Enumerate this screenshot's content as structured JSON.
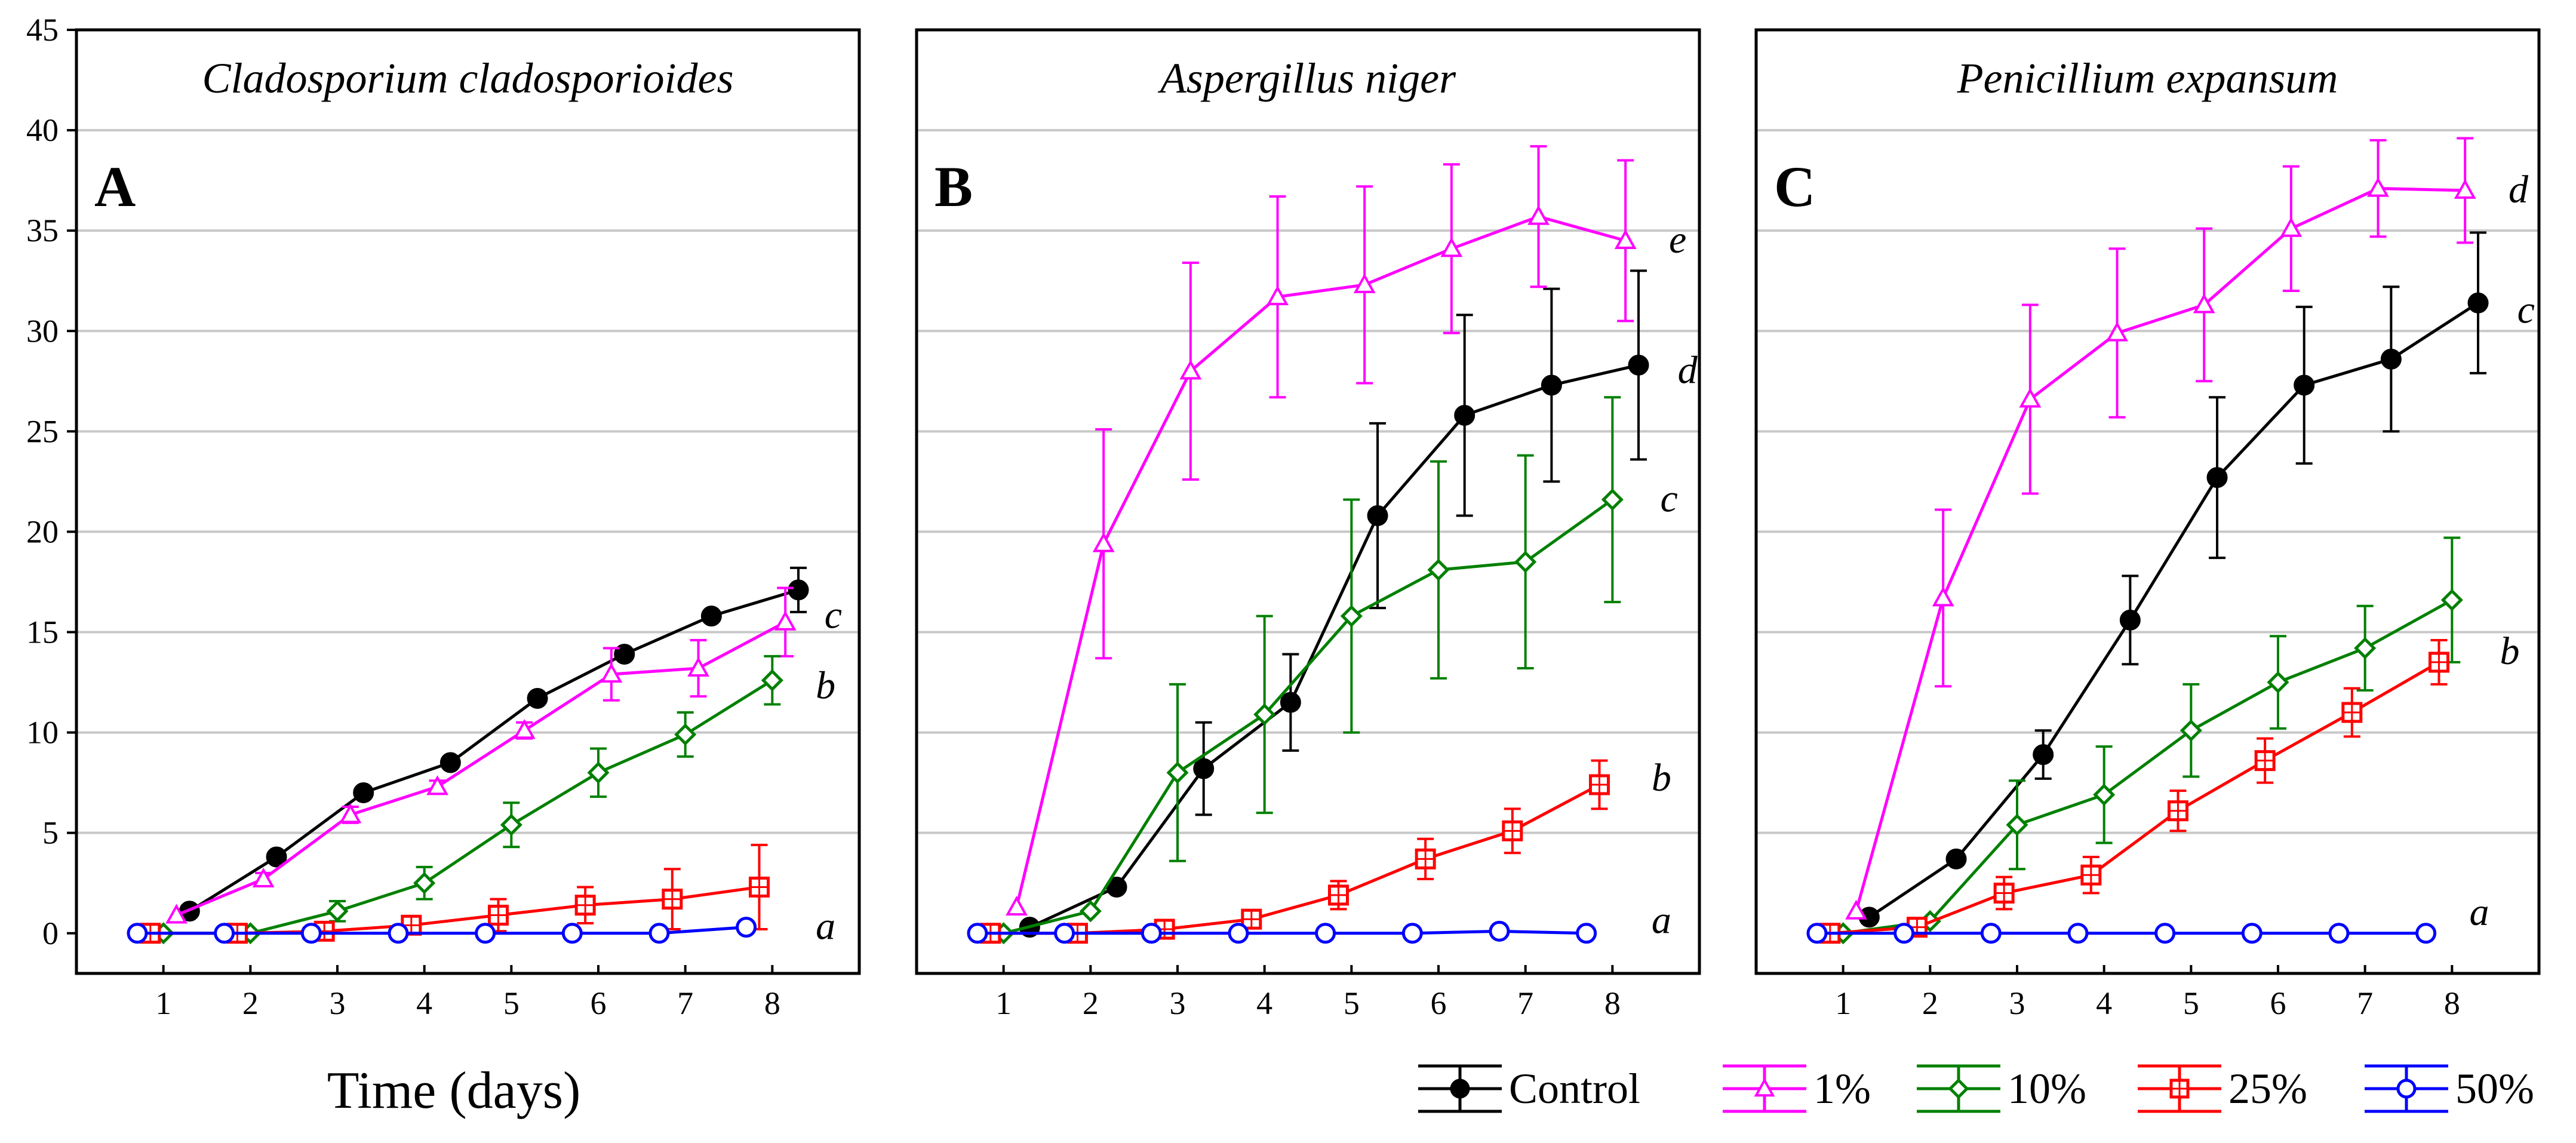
{
  "figure": {
    "xlabel": "Time (days)",
    "legend": [
      {
        "name": "Control",
        "color": "#000000",
        "marker": "filled-circle"
      },
      {
        "name": "1%",
        "color": "#ff00ff",
        "marker": "triangle"
      },
      {
        "name": "10%",
        "color": "#008000",
        "marker": "diamond"
      },
      {
        "name": "25%",
        "color": "#ff0000",
        "marker": "square"
      },
      {
        "name": "50%",
        "color": "#0000ff",
        "marker": "circle"
      }
    ],
    "legend_placement": "bottom-right"
  },
  "chart_data": [
    {
      "type": "line",
      "panel_letter": "A",
      "title": "Cladosporium cladosporioides",
      "x_ticks": [
        "1",
        "2",
        "3",
        "4",
        "5",
        "6",
        "7",
        "8"
      ],
      "y_ticks": [
        "0",
        "5",
        "10",
        "15",
        "20",
        "25",
        "30",
        "35",
        "40",
        "45"
      ],
      "xlim": [
        0,
        9
      ],
      "ylim": [
        -2,
        45
      ],
      "grid": "horizontal",
      "xlabel": "Time (days)",
      "series": [
        {
          "name": "Control",
          "x": [
            1.3,
            2.3,
            3.3,
            4.3,
            5.3,
            6.3,
            7.3,
            8.3
          ],
          "y": [
            1.1,
            3.8,
            7.0,
            8.5,
            11.7,
            13.9,
            15.8,
            17.1
          ],
          "err": [
            0,
            0,
            0,
            0,
            0,
            0,
            0,
            1.1
          ],
          "letter": "c",
          "letter_x": 8.6,
          "letter_y": 15.8
        },
        {
          "name": "1%",
          "x": [
            1.15,
            2.15,
            3.15,
            4.15,
            5.15,
            6.15,
            7.15,
            8.15
          ],
          "y": [
            0.9,
            2.7,
            5.9,
            7.3,
            10.1,
            12.9,
            13.2,
            15.5
          ],
          "err": [
            0,
            0.3,
            0.4,
            0.3,
            0.4,
            1.3,
            1.4,
            1.7
          ]
        },
        {
          "name": "10%",
          "x": [
            1.0,
            2.0,
            3.0,
            4.0,
            5.0,
            6.0,
            7.0,
            8.0
          ],
          "y": [
            0,
            0,
            1.1,
            2.5,
            5.4,
            8.0,
            9.9,
            12.6
          ],
          "err": [
            0,
            0,
            0.5,
            0.8,
            1.1,
            1.2,
            1.1,
            1.2
          ],
          "letter": "b",
          "letter_x": 8.5,
          "letter_y": 12.3
        },
        {
          "name": "25%",
          "x": [
            0.85,
            1.85,
            2.85,
            3.85,
            4.85,
            5.85,
            6.85,
            7.85
          ],
          "y": [
            0,
            0,
            0.1,
            0.4,
            0.9,
            1.4,
            1.7,
            2.3
          ],
          "err": [
            0,
            0,
            0.1,
            0.2,
            0.8,
            0.9,
            1.5,
            2.1
          ]
        },
        {
          "name": "50%",
          "x": [
            0.7,
            1.7,
            2.7,
            3.7,
            4.7,
            5.7,
            6.7,
            7.7
          ],
          "y": [
            0,
            0,
            0,
            0,
            0,
            0,
            0,
            0.3
          ],
          "err": [
            0,
            0,
            0,
            0,
            0,
            0,
            0,
            0
          ],
          "letter": "a",
          "letter_x": 8.5,
          "letter_y": 0.3
        }
      ]
    },
    {
      "type": "line",
      "panel_letter": "B",
      "title": "Aspergillus niger",
      "x_ticks": [
        "1",
        "2",
        "3",
        "4",
        "5",
        "6",
        "7",
        "8"
      ],
      "y_ticks": [
        "0",
        "5",
        "10",
        "15",
        "20",
        "25",
        "30",
        "35",
        "40",
        "45"
      ],
      "xlim": [
        0,
        9
      ],
      "ylim": [
        -2,
        45
      ],
      "grid": "horizontal",
      "series": [
        {
          "name": "Control",
          "x": [
            1.3,
            2.3,
            3.3,
            4.3,
            5.3,
            6.3,
            7.3,
            8.3
          ],
          "y": [
            0.3,
            2.3,
            8.2,
            11.5,
            20.8,
            25.8,
            27.3,
            28.3
          ],
          "err": [
            0,
            0,
            2.3,
            2.4,
            4.6,
            5.0,
            4.8,
            4.7
          ],
          "letter": "d",
          "letter_x": 8.75,
          "letter_y": 28.0
        },
        {
          "name": "1%",
          "x": [
            1.15,
            2.15,
            3.15,
            4.15,
            5.15,
            6.15,
            7.15,
            8.15
          ],
          "y": [
            1.3,
            19.4,
            28.0,
            31.7,
            32.3,
            34.1,
            35.7,
            34.5
          ],
          "err": [
            0,
            5.7,
            5.4,
            5.0,
            4.9,
            4.2,
            3.5,
            4.0
          ],
          "letter": "e",
          "letter_x": 8.65,
          "letter_y": 34.5
        },
        {
          "name": "10%",
          "x": [
            1.0,
            2.0,
            3.0,
            4.0,
            5.0,
            6.0,
            7.0,
            8.0
          ],
          "y": [
            0,
            1.1,
            8.0,
            10.9,
            15.8,
            18.1,
            18.5,
            21.6
          ],
          "err": [
            0,
            0,
            4.4,
            4.9,
            5.8,
            5.4,
            5.3,
            5.1
          ],
          "letter": "c",
          "letter_x": 8.55,
          "letter_y": 21.6
        },
        {
          "name": "25%",
          "x": [
            0.85,
            1.85,
            2.85,
            3.85,
            4.85,
            5.85,
            6.85,
            7.85
          ],
          "y": [
            0,
            0,
            0.2,
            0.7,
            1.9,
            3.7,
            5.1,
            7.4
          ],
          "err": [
            0,
            0,
            0,
            0.1,
            0.7,
            1.0,
            1.1,
            1.2
          ],
          "letter": "b",
          "letter_x": 8.45,
          "letter_y": 7.7
        },
        {
          "name": "50%",
          "x": [
            0.7,
            1.7,
            2.7,
            3.7,
            4.7,
            5.7,
            6.7,
            7.7
          ],
          "y": [
            0,
            0,
            0,
            0,
            0,
            0,
            0.1,
            0
          ],
          "err": [
            0,
            0,
            0,
            0,
            0,
            0,
            0,
            0
          ],
          "letter": "a",
          "letter_x": 8.45,
          "letter_y": 0.6
        }
      ]
    },
    {
      "type": "line",
      "panel_letter": "C",
      "title": "Penicillium expansum",
      "x_ticks": [
        "1",
        "2",
        "3",
        "4",
        "5",
        "6",
        "7",
        "8"
      ],
      "y_ticks": [
        "0",
        "5",
        "10",
        "15",
        "20",
        "25",
        "30",
        "35",
        "40",
        "45"
      ],
      "xlim": [
        0,
        9
      ],
      "ylim": [
        -2,
        45
      ],
      "grid": "horizontal",
      "series": [
        {
          "name": "Control",
          "x": [
            1.3,
            2.3,
            3.3,
            4.3,
            5.3,
            6.3,
            7.3,
            8.3
          ],
          "y": [
            0.8,
            3.7,
            8.9,
            15.6,
            22.7,
            27.3,
            28.6,
            31.4
          ],
          "err": [
            0,
            0,
            1.2,
            2.2,
            4.0,
            3.9,
            3.6,
            3.5
          ],
          "letter": "c",
          "letter_x": 8.75,
          "letter_y": 31.0
        },
        {
          "name": "1%",
          "x": [
            1.15,
            2.15,
            3.15,
            4.15,
            5.15,
            6.15,
            7.15,
            8.15
          ],
          "y": [
            1.1,
            16.7,
            26.6,
            29.9,
            31.3,
            35.1,
            37.1,
            37.0
          ],
          "err": [
            0,
            4.4,
            4.7,
            4.2,
            3.8,
            3.1,
            2.4,
            2.6
          ],
          "letter": "d",
          "letter_x": 8.65,
          "letter_y": 37.0
        },
        {
          "name": "10%",
          "x": [
            1.0,
            2.0,
            3.0,
            4.0,
            5.0,
            6.0,
            7.0,
            8.0
          ],
          "y": [
            0,
            0.6,
            5.4,
            6.9,
            10.1,
            12.5,
            14.2,
            16.6
          ],
          "err": [
            0,
            0,
            2.2,
            2.4,
            2.3,
            2.3,
            2.1,
            3.1
          ],
          "letter": "b",
          "letter_x": 8.55,
          "letter_y": 14.0
        },
        {
          "name": "25%",
          "x": [
            0.85,
            1.85,
            2.85,
            3.85,
            4.85,
            5.85,
            6.85,
            7.85
          ],
          "y": [
            0,
            0.3,
            2.0,
            2.9,
            6.1,
            8.6,
            11.0,
            13.5
          ],
          "err": [
            0,
            0,
            0.8,
            0.9,
            1.0,
            1.1,
            1.2,
            1.1
          ]
        },
        {
          "name": "50%",
          "x": [
            0.7,
            1.7,
            2.7,
            3.7,
            4.7,
            5.7,
            6.7,
            7.7
          ],
          "y": [
            0,
            0,
            0,
            0,
            0,
            0,
            0,
            0
          ],
          "err": [
            0,
            0,
            0,
            0,
            0,
            0,
            0,
            0
          ],
          "letter": "a",
          "letter_x": 8.2,
          "letter_y": 1.0
        }
      ]
    }
  ]
}
